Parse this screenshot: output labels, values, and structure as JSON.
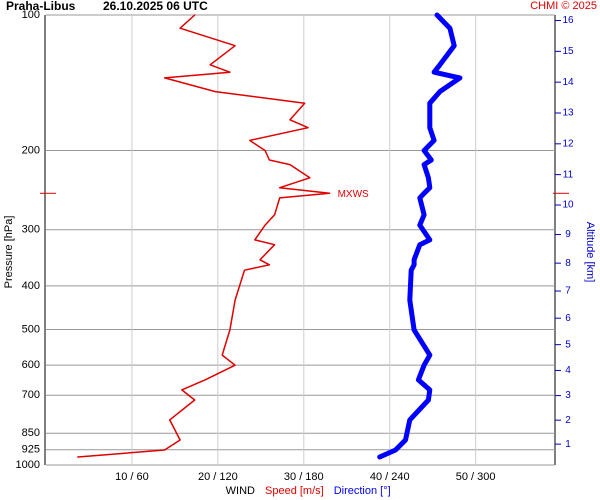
{
  "chart_data": {
    "type": "line",
    "title": "Praha-Libus",
    "subtitle": "26.10.2025 06 UTC",
    "credit": "CHMI © 2025",
    "ylabel": "Pressure [hPa]",
    "y2label": "Altitude [km]",
    "xlabel": "WIND",
    "annotation": "MXWS",
    "y": [
      100,
      107,
      117,
      129,
      134,
      138,
      148,
      157,
      171,
      178,
      190,
      200,
      210,
      215,
      230,
      242,
      249,
      255,
      278,
      293,
      316,
      324,
      350,
      359,
      369,
      430,
      501,
      570,
      600,
      647,
      681,
      717,
      794,
      880,
      926,
      960
    ],
    "series": [
      {
        "name": "Speed [m/s]",
        "color": "#e00000",
        "axis": "x",
        "values": [
          17.3,
          15.6,
          22.0,
          19.1,
          21.4,
          13.8,
          19.7,
          30.1,
          28.4,
          30.5,
          23.7,
          25.5,
          26.0,
          28.4,
          30.7,
          27.2,
          33.0,
          27.2,
          26.6,
          25.5,
          24.3,
          26.6,
          24.9,
          26.0,
          23.1,
          22.0,
          21.4,
          20.5,
          22.0,
          18.5,
          15.8,
          17.3,
          14.4,
          15.6,
          13.8,
          3.7
        ]
      },
      {
        "name": "Direction [°]",
        "color": "#0000ff",
        "axis": "x2",
        "values": [
          273,
          282,
          285,
          275,
          271,
          289,
          275,
          268,
          268,
          268,
          271,
          264,
          269,
          264,
          267,
          268,
          264,
          261,
          264,
          261,
          268,
          261,
          257,
          257,
          255,
          254,
          257,
          268,
          264,
          260,
          268,
          267,
          254,
          251,
          244,
          233
        ]
      }
    ],
    "xlim": [
      0,
      59
    ],
    "x2lim": [
      0,
      354
    ],
    "xticks": [
      {
        "value": 10,
        "label": "10 / 60"
      },
      {
        "value": 20,
        "label": "20 / 120"
      },
      {
        "value": 30,
        "label": "30 / 180"
      },
      {
        "value": 40,
        "label": "40 / 240"
      },
      {
        "value": 50,
        "label": "50 / 300"
      }
    ],
    "ylim": [
      1000,
      100
    ],
    "ylog": true,
    "yticks": [
      100,
      200,
      300,
      400,
      500,
      600,
      700,
      850,
      925,
      1000
    ],
    "y2ticks": [
      1,
      2,
      3,
      4,
      5,
      6,
      7,
      8,
      9,
      10,
      11,
      12,
      13,
      14,
      15,
      16
    ],
    "y2color": "#0000cc",
    "grid": true
  }
}
